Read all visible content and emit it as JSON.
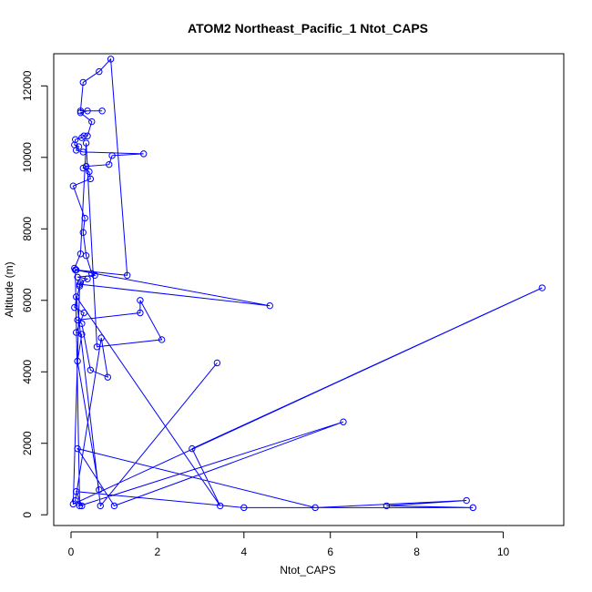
{
  "chart_data": {
    "type": "scatter",
    "title": "ATOM2 Northeast_Pacific_1 Ntot_CAPS",
    "xlabel": "Ntot_CAPS",
    "ylabel": "Altitude (m)",
    "xlim": [
      -0.4,
      11.4
    ],
    "ylim": [
      -300,
      12900
    ],
    "xticks": [
      0,
      2,
      4,
      6,
      8,
      10
    ],
    "yticks": [
      0,
      2000,
      4000,
      6000,
      8000,
      10000,
      12000
    ],
    "grid": false,
    "color": "#0000ff",
    "style": "lines+points (open circles)",
    "series": [
      {
        "x": [
          0.65,
          0.15,
          0.25,
          0.12,
          0.3,
          0.08,
          0.2,
          0.22,
          0.38,
          0.15,
          0.55,
          0.48,
          0.35,
          0.28,
          0.32,
          0.05,
          0.45,
          0.42,
          0.28,
          0.35,
          0.88,
          0.95,
          1.68,
          0.28,
          0.12,
          0.18,
          0.08,
          0.1,
          0.25,
          0.3,
          0.38,
          0.48,
          0.22,
          0.38,
          0.72,
          0.22,
          0.28,
          0.65,
          0.92,
          1.3,
          0.12,
          0.08,
          0.22,
          0.35,
          0.6,
          2.1,
          1.6,
          1.6,
          0.15,
          0.25,
          0.45,
          0.85,
          0.7,
          0.1,
          0.25,
          0.12,
          4.0,
          9.3,
          7.3,
          9.15,
          5.65,
          0.15,
          1.0,
          6.3,
          0.2,
          0.1,
          4.6,
          0.2,
          0.05,
          10.9,
          2.8,
          3.45,
          0.12,
          0.68,
          3.38
        ],
        "y": [
          700,
          4300,
          5050,
          5100,
          5650,
          5800,
          6400,
          6500,
          6600,
          6650,
          6700,
          6750,
          7250,
          7900,
          8300,
          9200,
          9400,
          9600,
          9700,
          9750,
          9800,
          10050,
          10100,
          10150,
          10200,
          10300,
          10350,
          10500,
          10550,
          10600,
          10600,
          11000,
          11250,
          11300,
          11300,
          11300,
          12100,
          12400,
          12750,
          6700,
          6850,
          6900,
          7300,
          10400,
          4700,
          4900,
          6000,
          5650,
          5450,
          5350,
          4050,
          3850,
          4950,
          400,
          250,
          650,
          200,
          200,
          250,
          400,
          200,
          1850,
          250,
          2600,
          250,
          6850,
          5850,
          6450,
          300,
          6350,
          1850,
          250,
          6100,
          250,
          4250
        ]
      }
    ]
  }
}
